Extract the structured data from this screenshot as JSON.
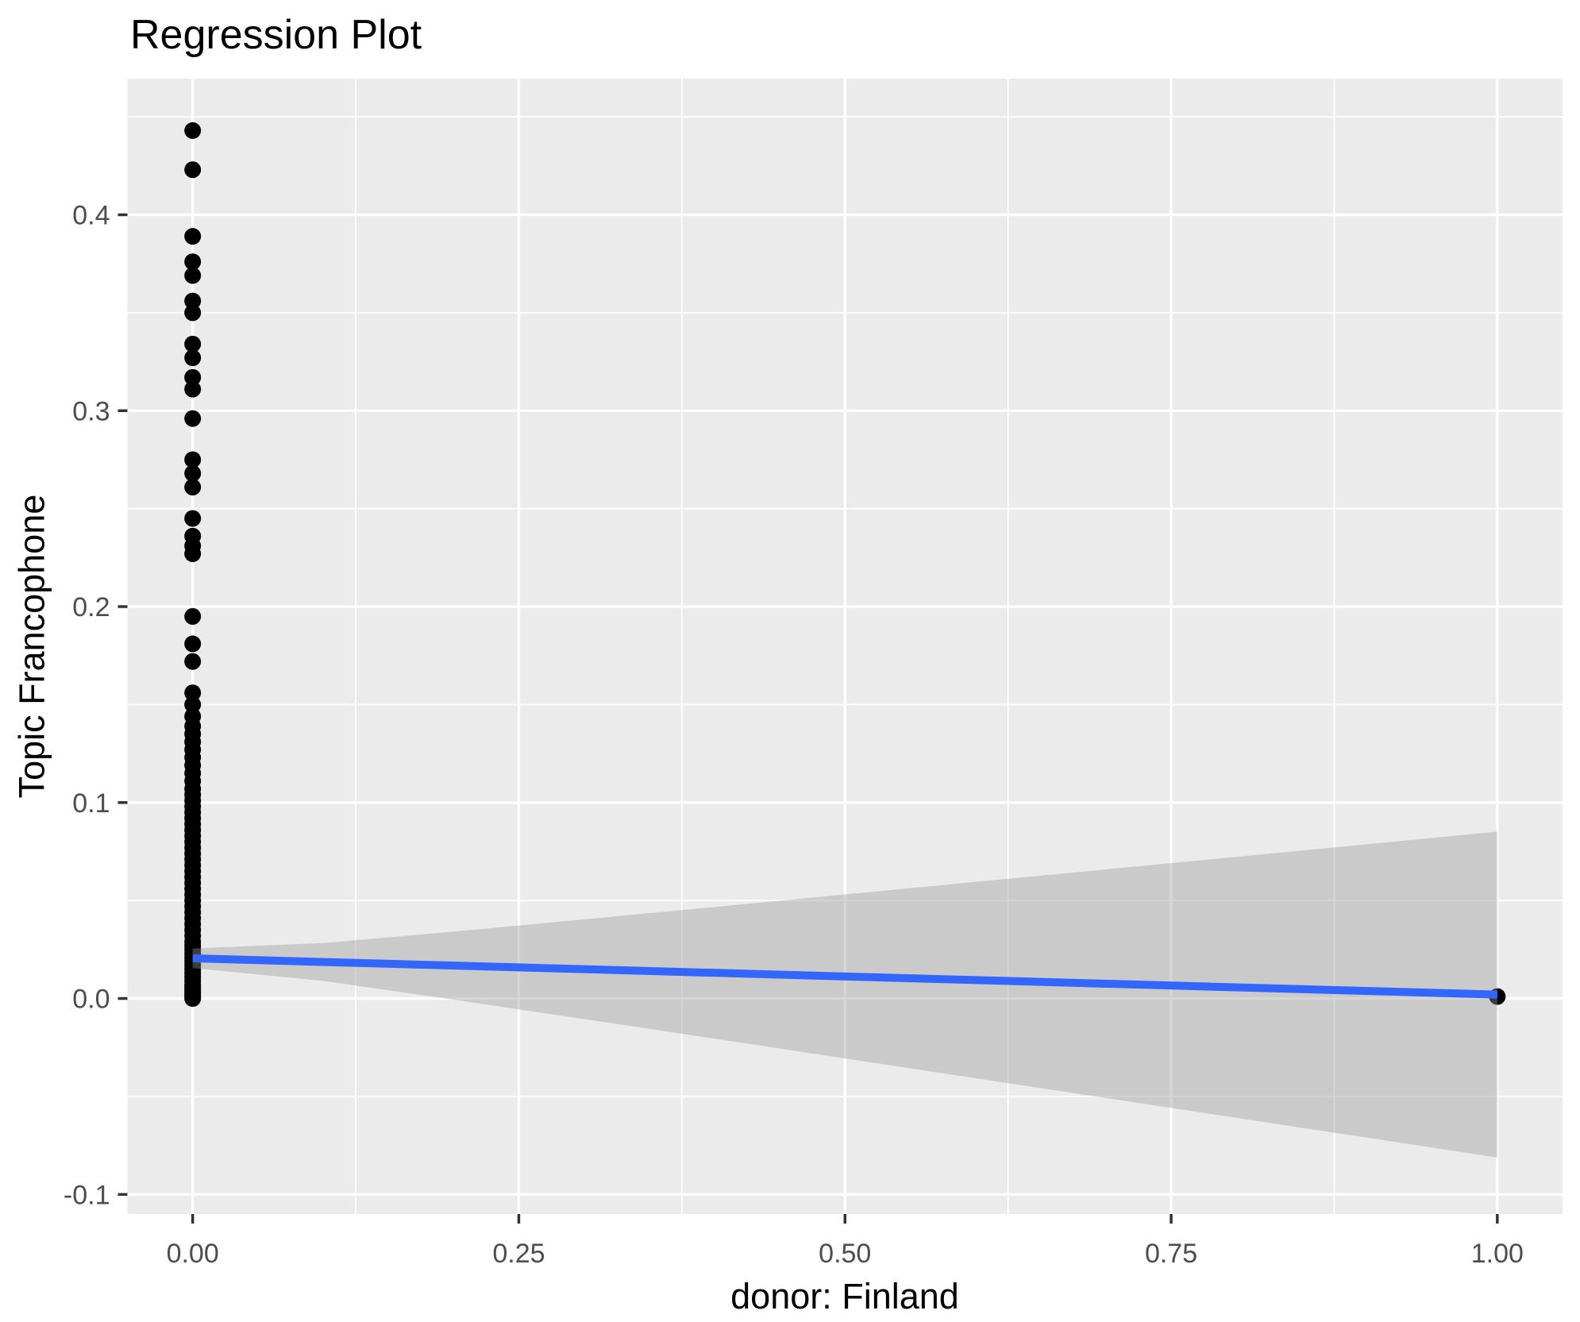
{
  "chart_data": {
    "type": "scatter",
    "title": "Regression Plot",
    "xlabel": "donor: Finland",
    "ylabel": "Topic Francophone",
    "xlim": [
      -0.05,
      1.05
    ],
    "ylim": [
      -0.11,
      0.4695
    ],
    "grid": "major and minor, white on grey panel",
    "legend_position": "none",
    "x_ticks": {
      "values": [
        0,
        0.25,
        0.5,
        0.75,
        1.0
      ],
      "labels": [
        "0.00",
        "0.25",
        "0.50",
        "0.75",
        "1.00"
      ]
    },
    "y_ticks": {
      "values": [
        0.4,
        0.3,
        0.2,
        0.1,
        0.0,
        -0.1
      ],
      "labels": [
        "0.4",
        "0.3",
        "0.2",
        "0.1",
        "0.0",
        "-0.1"
      ]
    },
    "x_minor": [
      0.125,
      0.375,
      0.625,
      0.875
    ],
    "y_minor": [
      0.45,
      0.35,
      0.25,
      0.15,
      0.05,
      -0.05
    ],
    "series": [
      {
        "name": "observations at donor = 0",
        "x": 0,
        "y": [
          0.443,
          0.423,
          0.389,
          0.376,
          0.369,
          0.356,
          0.35,
          0.334,
          0.327,
          0.317,
          0.311,
          0.296,
          0.275,
          0.268,
          0.261,
          0.245,
          0.236,
          0.231,
          0.227,
          0.195,
          0.181,
          0.172,
          0.156,
          0.15,
          0.144,
          0.139,
          0.135,
          0.131,
          0.127,
          0.123,
          0.119,
          0.115,
          0.111,
          0.107,
          0.104,
          0.101,
          0.098,
          0.095,
          0.092,
          0.089,
          0.086,
          0.083,
          0.08,
          0.077,
          0.074,
          0.071,
          0.068,
          0.065,
          0.062,
          0.059,
          0.056,
          0.053,
          0.05,
          0.047,
          0.044,
          0.041,
          0.038,
          0.035,
          0.032,
          0.029,
          0.027,
          0.025,
          0.023,
          0.021,
          0.019,
          0.017,
          0.015,
          0.013,
          0.011,
          0.009,
          0.007,
          0.006,
          0.005,
          0.004,
          0.003,
          0.002,
          0.001,
          0.0
        ]
      },
      {
        "name": "observation at donor = 1",
        "x": 1,
        "y": [
          0.001
        ]
      }
    ],
    "regression_line": {
      "x": [
        0,
        1
      ],
      "y": [
        0.0205,
        0.002
      ]
    },
    "confidence_band": {
      "x": [
        0,
        0.1,
        0.2,
        0.3,
        0.4,
        0.5,
        0.6,
        0.7,
        0.8,
        0.9,
        1.0
      ],
      "upper": [
        0.0255,
        0.0283,
        0.0341,
        0.0404,
        0.0467,
        0.0531,
        0.0595,
        0.0659,
        0.0723,
        0.0787,
        0.0852
      ],
      "lower": [
        0.0155,
        0.009,
        -0.0006,
        -0.0105,
        -0.0205,
        -0.0306,
        -0.0407,
        -0.0508,
        -0.0609,
        -0.071,
        -0.0812
      ]
    }
  },
  "colors": {
    "page_bg": "#FFFFFF",
    "panel_bg": "#EBEBEB",
    "grid": "#FFFFFF",
    "point": "#000000",
    "regression_line": "#3366FF",
    "confidence_band": "rgba(153,153,153,0.40)",
    "tick_mark": "#333333",
    "tick_label": "#4D4D4D",
    "title_text": "#000000",
    "axis_title_text": "#000000"
  }
}
